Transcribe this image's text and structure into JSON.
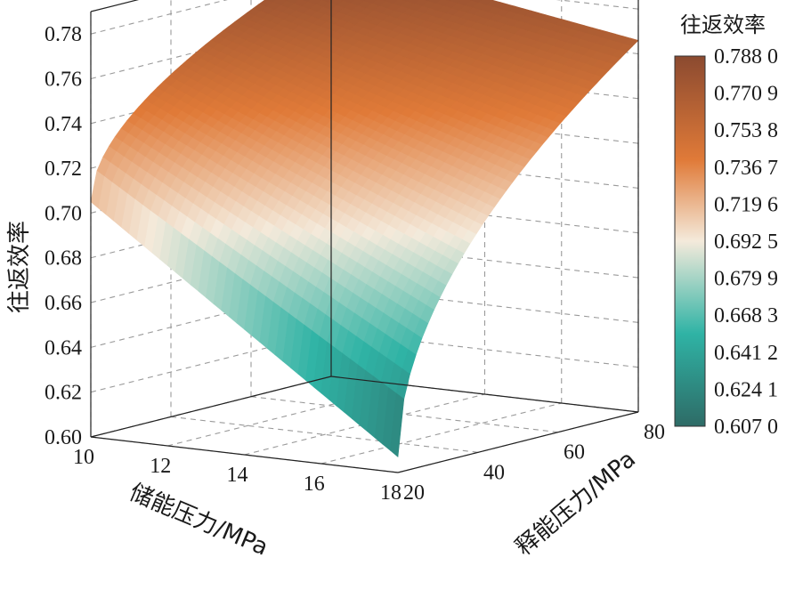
{
  "chart_data": {
    "type": "surface3d",
    "title": "",
    "x_axis": {
      "label": "储能压力/MPa",
      "range": [
        10,
        18
      ],
      "ticks": [
        "10",
        "12",
        "14",
        "16",
        "18"
      ]
    },
    "y_axis": {
      "label": "释能压力/MPa",
      "range": [
        20,
        80
      ],
      "ticks": [
        "20",
        "40",
        "60",
        "80"
      ]
    },
    "z_axis": {
      "label": "往返效率",
      "range": [
        0.6,
        0.79
      ],
      "ticks": [
        "0.60",
        "0.62",
        "0.64",
        "0.66",
        "0.68",
        "0.70",
        "0.72",
        "0.74",
        "0.76",
        "0.78"
      ]
    },
    "corner_values": [
      {
        "x": 10,
        "y": 20,
        "z": 0.705
      },
      {
        "x": 10,
        "y": 80,
        "z": 0.788
      },
      {
        "x": 18,
        "y": 20,
        "z": 0.607
      },
      {
        "x": 18,
        "y": 80,
        "z": 0.766
      }
    ],
    "colorbar": {
      "title": "往返效率",
      "labels": [
        "0.788 0",
        "0.770 9",
        "0.753 8",
        "0.736 7",
        "0.719 6",
        "0.692 5",
        "0.679 9",
        "0.668 3",
        "0.641 2",
        "0.624 1",
        "0.607 0"
      ],
      "colors": {
        "top": "#8b4a30",
        "upper": "#e07a38",
        "middle": "#f4eadb",
        "lower": "#2fb3a5",
        "bottom": "#2e6b66"
      }
    },
    "grid": true
  }
}
